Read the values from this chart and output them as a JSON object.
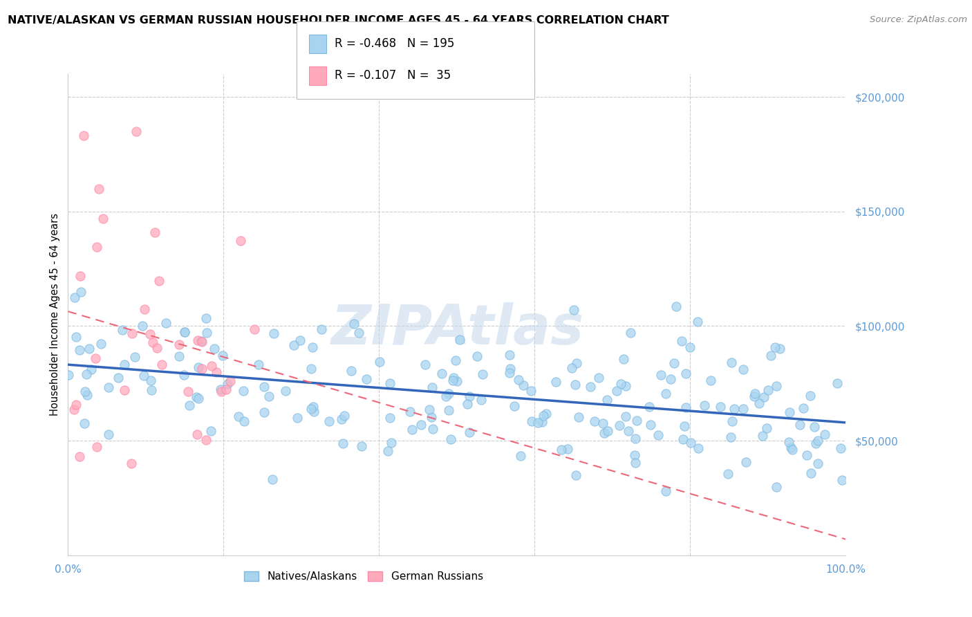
{
  "title": "NATIVE/ALASKAN VS GERMAN RUSSIAN HOUSEHOLDER INCOME AGES 45 - 64 YEARS CORRELATION CHART",
  "source": "Source: ZipAtlas.com",
  "ylabel": "Householder Income Ages 45 - 64 years",
  "watermark": "ZIPAtlas",
  "legend1_label": "Natives/Alaskans",
  "legend2_label": "German Russians",
  "r1": "-0.468",
  "n1": "195",
  "r2": "-0.107",
  "n2": "35",
  "blue_fill": "#A8D4F0",
  "blue_edge": "#7EB8E0",
  "pink_fill": "#FFAABB",
  "pink_edge": "#FF88AA",
  "trendline1_color": "#3366BB",
  "trendline2_color": "#EE6677",
  "grid_color": "#CCCCCC",
  "ytick_color": "#5B9BD5",
  "xtick_color": "#5B9BD5",
  "ylim": [
    0,
    210000
  ],
  "xlim": [
    0,
    100
  ],
  "seed": 12345
}
